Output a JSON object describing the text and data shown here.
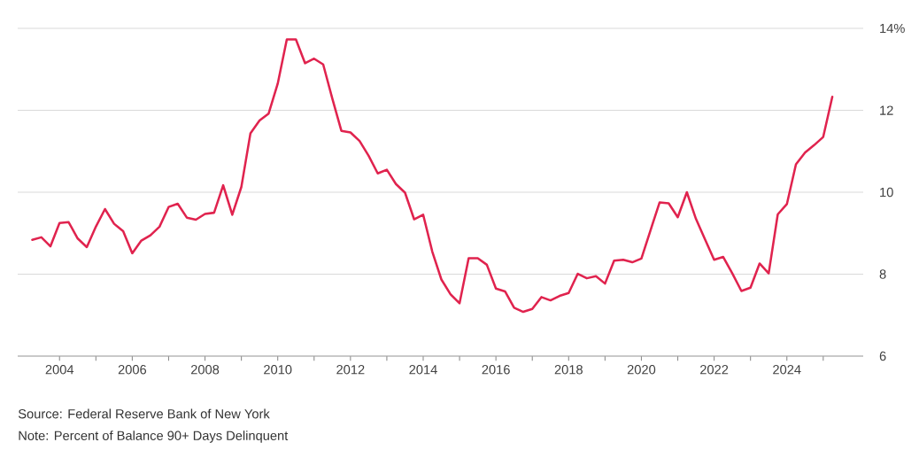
{
  "chart_data": {
    "type": "line",
    "x": [
      2003.25,
      2003.5,
      2003.75,
      2004,
      2004.25,
      2004.5,
      2004.75,
      2005,
      2005.25,
      2005.5,
      2005.75,
      2006,
      2006.25,
      2006.5,
      2006.75,
      2007,
      2007.25,
      2007.5,
      2007.75,
      2008,
      2008.25,
      2008.5,
      2008.75,
      2009,
      2009.25,
      2009.5,
      2009.75,
      2010,
      2010.25,
      2010.5,
      2010.75,
      2011,
      2011.25,
      2011.5,
      2011.75,
      2012,
      2012.25,
      2012.5,
      2012.75,
      2013,
      2013.25,
      2013.5,
      2013.75,
      2014,
      2014.25,
      2014.5,
      2014.75,
      2015,
      2015.25,
      2015.5,
      2015.75,
      2016,
      2016.25,
      2016.5,
      2016.75,
      2017,
      2017.25,
      2017.5,
      2017.75,
      2018,
      2018.25,
      2018.5,
      2018.75,
      2019,
      2019.25,
      2019.5,
      2019.75,
      2020,
      2020.25,
      2020.5,
      2020.75,
      2021,
      2021.25,
      2021.5,
      2021.75,
      2022,
      2022.25,
      2022.5,
      2022.75,
      2023,
      2023.25,
      2023.5,
      2023.75,
      2024,
      2024.25,
      2024.5,
      2024.75,
      2025,
      2025.25
    ],
    "series": [
      {
        "color": "#e0234e",
        "values": [
          8.84,
          8.9,
          8.68,
          9.25,
          9.27,
          8.87,
          8.66,
          9.16,
          9.59,
          9.23,
          9.05,
          8.51,
          8.82,
          8.95,
          9.16,
          9.64,
          9.72,
          9.38,
          9.33,
          9.47,
          9.5,
          10.17,
          9.45,
          10.13,
          11.44,
          11.75,
          11.92,
          12.65,
          13.73,
          13.73,
          13.15,
          13.26,
          13.12,
          12.29,
          11.5,
          11.46,
          11.25,
          10.89,
          10.46,
          10.55,
          10.2,
          9.99,
          9.34,
          9.45,
          8.55,
          7.87,
          7.51,
          7.29,
          8.39,
          8.39,
          8.23,
          7.65,
          7.58,
          7.18,
          7.08,
          7.15,
          7.44,
          7.36,
          7.47,
          7.54,
          8.01,
          7.9,
          7.95,
          7.77,
          8.33,
          8.35,
          8.29,
          8.38,
          9.07,
          9.75,
          9.73,
          9.39,
          10.0,
          9.35,
          8.85,
          8.35,
          8.42,
          8.02,
          7.59,
          7.67,
          8.26,
          8.02,
          9.46,
          9.71,
          10.68,
          10.97,
          11.15,
          11.35,
          12.33
        ]
      }
    ],
    "xlim": [
      2002.85,
      2026.1
    ],
    "xticks": [
      2004,
      {
        "value": 2005,
        "label": null
      },
      2006,
      {
        "value": 2007,
        "label": null
      },
      2008,
      {
        "value": 2009,
        "label": null
      },
      2010,
      {
        "value": 2011,
        "label": null
      },
      2012,
      {
        "value": 2013,
        "label": null
      },
      2014,
      {
        "value": 2015,
        "label": null
      },
      2016,
      {
        "value": 2017,
        "label": null
      },
      2018,
      {
        "value": 2019,
        "label": null
      },
      2020,
      {
        "value": 2021,
        "label": null
      },
      2022,
      {
        "value": 2023,
        "label": null
      },
      2024,
      {
        "value": 2025,
        "label": null
      }
    ],
    "ylim": [
      6,
      14
    ],
    "yticks": [
      6,
      8,
      10,
      12,
      {
        "value": 14,
        "label": "14%"
      }
    ],
    "grid": "y",
    "legend": false,
    "marker": "none",
    "line_style": "solid",
    "annotations": [
      "Source: Federal Reserve Bank of New York",
      "Note: Percent of Balance 90+ Days Delinquent"
    ]
  }
}
